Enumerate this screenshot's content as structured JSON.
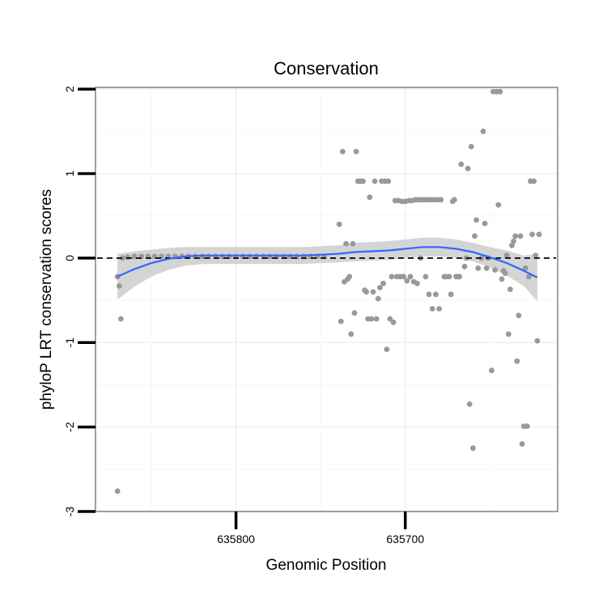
{
  "chart_data": {
    "type": "scatter",
    "title": "Conservation",
    "xlabel": "Genomic Position",
    "ylabel": "phyloP LRT conservation scores",
    "x_reversed": true,
    "xlim": [
      635883,
      635610
    ],
    "ylim": [
      -3,
      2.02
    ],
    "x_ticks": [
      635800,
      635700
    ],
    "y_ticks": [
      -3,
      -2,
      -1,
      0,
      1,
      2
    ],
    "reference_line": {
      "y": 0,
      "style": "dashed",
      "color": "#000000"
    },
    "grid": true,
    "point_color": "#999999",
    "smooth_color": "#3366ff",
    "ribbon_color": "#cccccc",
    "points": [
      {
        "x": 635870,
        "y": -2.76
      },
      {
        "x": 635870,
        "y": -0.22
      },
      {
        "x": 635869,
        "y": -0.33
      },
      {
        "x": 635868,
        "y": -0.72
      },
      {
        "x": 635867,
        "y": 0.0
      },
      {
        "x": 635864,
        "y": 0.01
      },
      {
        "x": 635860,
        "y": 0.02
      },
      {
        "x": 635856,
        "y": 0.02
      },
      {
        "x": 635852,
        "y": 0.02
      },
      {
        "x": 635848,
        "y": 0.02
      },
      {
        "x": 635844,
        "y": 0.02
      },
      {
        "x": 635840,
        "y": 0.02
      },
      {
        "x": 635836,
        "y": 0.02
      },
      {
        "x": 635832,
        "y": 0.02
      },
      {
        "x": 635828,
        "y": 0.02
      },
      {
        "x": 635824,
        "y": 0.02
      },
      {
        "x": 635820,
        "y": 0.02
      },
      {
        "x": 635816,
        "y": 0.02
      },
      {
        "x": 635812,
        "y": 0.02
      },
      {
        "x": 635808,
        "y": 0.02
      },
      {
        "x": 635804,
        "y": 0.02
      },
      {
        "x": 635800,
        "y": 0.02
      },
      {
        "x": 635796,
        "y": 0.02
      },
      {
        "x": 635792,
        "y": 0.02
      },
      {
        "x": 635788,
        "y": 0.02
      },
      {
        "x": 635784,
        "y": 0.02
      },
      {
        "x": 635780,
        "y": 0.02
      },
      {
        "x": 635776,
        "y": 0.02
      },
      {
        "x": 635772,
        "y": 0.02
      },
      {
        "x": 635768,
        "y": 0.02
      },
      {
        "x": 635764,
        "y": 0.02
      },
      {
        "x": 635760,
        "y": 0.02
      },
      {
        "x": 635756,
        "y": 0.02
      },
      {
        "x": 635752,
        "y": 0.02
      },
      {
        "x": 635748,
        "y": 0.02
      },
      {
        "x": 635739,
        "y": 0.4
      },
      {
        "x": 635738,
        "y": -0.75
      },
      {
        "x": 635737,
        "y": 1.26
      },
      {
        "x": 635736,
        "y": -0.28
      },
      {
        "x": 635735,
        "y": 0.17
      },
      {
        "x": 635734,
        "y": -0.25
      },
      {
        "x": 635733,
        "y": -0.22
      },
      {
        "x": 635732,
        "y": -0.9
      },
      {
        "x": 635731,
        "y": 0.17
      },
      {
        "x": 635730,
        "y": -0.65
      },
      {
        "x": 635729,
        "y": 1.26
      },
      {
        "x": 635728,
        "y": 0.91
      },
      {
        "x": 635727,
        "y": 0.91
      },
      {
        "x": 635726,
        "y": 0.91
      },
      {
        "x": 635725,
        "y": 0.91
      },
      {
        "x": 635724,
        "y": -0.38
      },
      {
        "x": 635723,
        "y": -0.4
      },
      {
        "x": 635722,
        "y": -0.72
      },
      {
        "x": 635721,
        "y": 0.72
      },
      {
        "x": 635720,
        "y": -0.72
      },
      {
        "x": 635719,
        "y": -0.4
      },
      {
        "x": 635718,
        "y": 0.91
      },
      {
        "x": 635717,
        "y": -0.72
      },
      {
        "x": 635716,
        "y": -0.48
      },
      {
        "x": 635715,
        "y": -0.35
      },
      {
        "x": 635714,
        "y": 0.91
      },
      {
        "x": 635713,
        "y": -0.3
      },
      {
        "x": 635712,
        "y": 0.91
      },
      {
        "x": 635711,
        "y": -1.08
      },
      {
        "x": 635710,
        "y": 0.91
      },
      {
        "x": 635709,
        "y": -0.72
      },
      {
        "x": 635708,
        "y": -0.22
      },
      {
        "x": 635707,
        "y": -0.76
      },
      {
        "x": 635706,
        "y": 0.68
      },
      {
        "x": 635705,
        "y": -0.22
      },
      {
        "x": 635704,
        "y": 0.68
      },
      {
        "x": 635703,
        "y": -0.22
      },
      {
        "x": 635702,
        "y": 0.67
      },
      {
        "x": 635701,
        "y": -0.22
      },
      {
        "x": 635700,
        "y": 0.67
      },
      {
        "x": 635699,
        "y": -0.27
      },
      {
        "x": 635698,
        "y": 0.68
      },
      {
        "x": 635697,
        "y": -0.22
      },
      {
        "x": 635696,
        "y": 0.68
      },
      {
        "x": 635695,
        "y": -0.28
      },
      {
        "x": 635694,
        "y": 0.69
      },
      {
        "x": 635693,
        "y": -0.3
      },
      {
        "x": 635692,
        "y": 0.69
      },
      {
        "x": 635691,
        "y": 0.0
      },
      {
        "x": 635690,
        "y": 0.69
      },
      {
        "x": 635689,
        "y": 0.69
      },
      {
        "x": 635688,
        "y": -0.22
      },
      {
        "x": 635687,
        "y": 0.69
      },
      {
        "x": 635686,
        "y": -0.43
      },
      {
        "x": 635685,
        "y": 0.69
      },
      {
        "x": 635684,
        "y": -0.6
      },
      {
        "x": 635683,
        "y": 0.69
      },
      {
        "x": 635682,
        "y": -0.43
      },
      {
        "x": 635681,
        "y": 0.69
      },
      {
        "x": 635680,
        "y": -0.6
      },
      {
        "x": 635679,
        "y": 0.69
      },
      {
        "x": 635677,
        "y": -0.22
      },
      {
        "x": 635676,
        "y": -0.22
      },
      {
        "x": 635674,
        "y": -0.22
      },
      {
        "x": 635673,
        "y": -0.43
      },
      {
        "x": 635672,
        "y": 0.67
      },
      {
        "x": 635671,
        "y": 0.69
      },
      {
        "x": 635670,
        "y": -0.22
      },
      {
        "x": 635669,
        "y": -0.22
      },
      {
        "x": 635668,
        "y": -0.22
      },
      {
        "x": 635667,
        "y": 1.11
      },
      {
        "x": 635665,
        "y": -0.1
      },
      {
        "x": 635664,
        "y": 0.0
      },
      {
        "x": 635663,
        "y": 1.06
      },
      {
        "x": 635662,
        "y": -1.73
      },
      {
        "x": 635661,
        "y": 1.32
      },
      {
        "x": 635660,
        "y": -2.25
      },
      {
        "x": 635659,
        "y": 0.26
      },
      {
        "x": 635658,
        "y": 0.45
      },
      {
        "x": 635657,
        "y": -0.12
      },
      {
        "x": 635655,
        "y": 0.0
      },
      {
        "x": 635654,
        "y": 1.5
      },
      {
        "x": 635653,
        "y": 0.41
      },
      {
        "x": 635652,
        "y": -0.12
      },
      {
        "x": 635651,
        "y": 0.0
      },
      {
        "x": 635649,
        "y": -1.33
      },
      {
        "x": 635648,
        "y": 1.97
      },
      {
        "x": 635647,
        "y": -0.14
      },
      {
        "x": 635646,
        "y": 1.97
      },
      {
        "x": 635645,
        "y": 0.63
      },
      {
        "x": 635644,
        "y": 1.97
      },
      {
        "x": 635643,
        "y": -0.25
      },
      {
        "x": 635642,
        "y": -0.15
      },
      {
        "x": 635641,
        "y": -0.18
      },
      {
        "x": 635640,
        "y": 0.03
      },
      {
        "x": 635639,
        "y": -0.9
      },
      {
        "x": 635638,
        "y": -0.37
      },
      {
        "x": 635637,
        "y": 0.15
      },
      {
        "x": 635636,
        "y": 0.2
      },
      {
        "x": 635635,
        "y": 0.26
      },
      {
        "x": 635634,
        "y": -1.22
      },
      {
        "x": 635633,
        "y": -0.68
      },
      {
        "x": 635632,
        "y": 0.26
      },
      {
        "x": 635631,
        "y": -2.2
      },
      {
        "x": 635630,
        "y": -1.99
      },
      {
        "x": 635629,
        "y": -0.12
      },
      {
        "x": 635628,
        "y": -1.99
      },
      {
        "x": 635627,
        "y": -0.22
      },
      {
        "x": 635626,
        "y": 0.91
      },
      {
        "x": 635625,
        "y": 0.28
      },
      {
        "x": 635624,
        "y": 0.91
      },
      {
        "x": 635623,
        "y": 0.03
      },
      {
        "x": 635622,
        "y": -0.98
      },
      {
        "x": 635621,
        "y": 0.28
      }
    ],
    "smooth": {
      "x": [
        635870,
        635860,
        635850,
        635840,
        635830,
        635820,
        635810,
        635800,
        635790,
        635780,
        635770,
        635760,
        635750,
        635740,
        635730,
        635720,
        635710,
        635700,
        635690,
        635680,
        635670,
        635660,
        635650,
        635640,
        635630,
        635622
      ],
      "y": [
        -0.22,
        -0.13,
        -0.06,
        -0.01,
        0.02,
        0.03,
        0.03,
        0.03,
        0.03,
        0.03,
        0.03,
        0.03,
        0.04,
        0.05,
        0.07,
        0.08,
        0.09,
        0.11,
        0.13,
        0.13,
        0.11,
        0.07,
        0.01,
        -0.06,
        -0.15,
        -0.23
      ],
      "lo": [
        -0.49,
        -0.34,
        -0.22,
        -0.14,
        -0.09,
        -0.07,
        -0.07,
        -0.07,
        -0.07,
        -0.07,
        -0.07,
        -0.07,
        -0.06,
        -0.05,
        -0.04,
        -0.03,
        -0.02,
        0.0,
        0.02,
        0.02,
        0.0,
        -0.04,
        -0.11,
        -0.21,
        -0.33,
        -0.51
      ],
      "hi": [
        0.05,
        0.08,
        0.1,
        0.12,
        0.13,
        0.13,
        0.13,
        0.13,
        0.13,
        0.13,
        0.13,
        0.13,
        0.14,
        0.15,
        0.18,
        0.19,
        0.2,
        0.22,
        0.24,
        0.24,
        0.22,
        0.18,
        0.13,
        0.09,
        0.03,
        0.05
      ]
    }
  }
}
